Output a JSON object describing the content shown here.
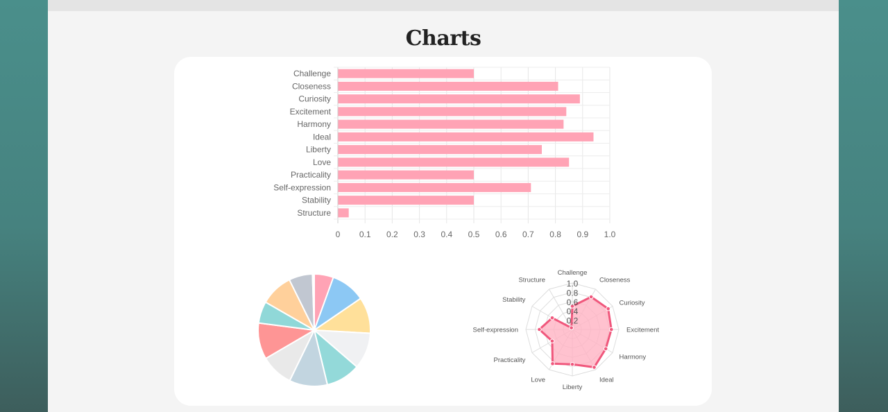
{
  "header": {
    "title": "Charts"
  },
  "colors": {
    "bar_fill": "#ffa3b5",
    "radar_line": "#f0577c",
    "radar_fill": "#ffb3c3",
    "pie": [
      "#ffa3b5",
      "#8cc8f4",
      "#ffe09a",
      "#f0f1f3",
      "#93d9d9",
      "#c2d5e0",
      "#e9e9e9",
      "#fe9595",
      "#90d8d8",
      "#ffd09b",
      "#c1c7d1",
      "#ffffff"
    ]
  },
  "chart_data": [
    {
      "type": "bar",
      "orientation": "horizontal",
      "categories": [
        "Challenge",
        "Closeness",
        "Curiosity",
        "Excitement",
        "Harmony",
        "Ideal",
        "Liberty",
        "Love",
        "Practicality",
        "Self-expression",
        "Stability",
        "Structure"
      ],
      "values": [
        0.5,
        0.81,
        0.89,
        0.84,
        0.83,
        0.94,
        0.75,
        0.85,
        0.5,
        0.71,
        0.5,
        0.04
      ],
      "xlim": [
        0,
        1.0
      ],
      "x_ticks": [
        "0",
        "0.1",
        "0.2",
        "0.3",
        "0.4",
        "0.5",
        "0.6",
        "0.7",
        "0.8",
        "0.9",
        "1.0"
      ],
      "grid": true
    },
    {
      "type": "pie",
      "values": [
        5.3,
        9.5,
        10,
        10,
        9.5,
        10.5,
        9,
        10,
        6,
        9,
        6.5,
        0.5
      ]
    },
    {
      "type": "radar",
      "categories": [
        "Challenge",
        "Closeness",
        "Curiosity",
        "Excitement",
        "Harmony",
        "Ideal",
        "Liberty",
        "Love",
        "Practicality",
        "Self-expression",
        "Stability",
        "Structure"
      ],
      "values": [
        0.5,
        0.81,
        0.89,
        0.84,
        0.83,
        0.94,
        0.75,
        0.85,
        0.5,
        0.71,
        0.5,
        0.04
      ],
      "rlim": [
        0,
        1.0
      ],
      "r_ticks": [
        "0.2",
        "0.4",
        "0.6",
        "0.8",
        "1.0"
      ]
    }
  ]
}
